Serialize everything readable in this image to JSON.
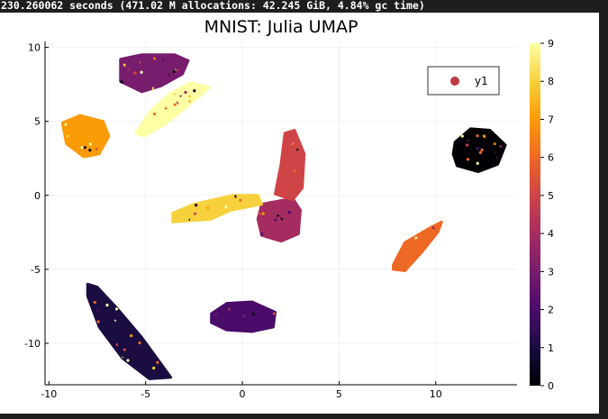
{
  "console": {
    "timing_text": "230.260062 seconds (471.02 M allocations: 42.245 GiB, 4.84% gc time)"
  },
  "chart_data": {
    "type": "scatter",
    "title": "MNIST: Julia UMAP",
    "xlabel": "",
    "ylabel": "",
    "xlim": [
      -10.2,
      14.2
    ],
    "ylim": [
      -12.8,
      10.4
    ],
    "xticks": [
      -10,
      -5,
      0,
      5,
      10
    ],
    "yticks": [
      -10,
      -5,
      0,
      5,
      10
    ],
    "grid": true,
    "legend": {
      "position": "top-right",
      "entries": [
        {
          "label": "y1",
          "color": "#c03a43"
        }
      ]
    },
    "colorbar": {
      "min": 0,
      "max": 9,
      "ticks": [
        0,
        1,
        2,
        3,
        4,
        5,
        6,
        7,
        8,
        9
      ],
      "colormap": "inferno"
    },
    "clusters": [
      {
        "label": 0,
        "center": [
          12.1,
          3.0
        ],
        "polygon": [
          [
            11.0,
            3.6
          ],
          [
            11.8,
            4.5
          ],
          [
            12.8,
            4.4
          ],
          [
            13.6,
            3.4
          ],
          [
            13.2,
            2.1
          ],
          [
            12.2,
            1.6
          ],
          [
            11.1,
            2.0
          ],
          [
            10.9,
            2.8
          ]
        ]
      },
      {
        "label": 1,
        "center": [
          -5.5,
          -9.0
        ],
        "polygon": [
          [
            -8.0,
            -6.0
          ],
          [
            -7.5,
            -6.2
          ],
          [
            -6.5,
            -7.6
          ],
          [
            -5.2,
            -9.6
          ],
          [
            -3.7,
            -12.3
          ],
          [
            -4.8,
            -12.4
          ],
          [
            -6.2,
            -11.0
          ],
          [
            -7.4,
            -8.9
          ],
          [
            -8.0,
            -6.8
          ]
        ]
      },
      {
        "label": 2,
        "center": [
          0.4,
          -8.2
        ],
        "polygon": [
          [
            -1.6,
            -8.0
          ],
          [
            -0.8,
            -7.3
          ],
          [
            0.5,
            -7.2
          ],
          [
            1.7,
            -7.9
          ],
          [
            1.6,
            -8.9
          ],
          [
            0.5,
            -9.2
          ],
          [
            -0.8,
            -9.1
          ],
          [
            -1.6,
            -8.6
          ]
        ]
      },
      {
        "label": 3,
        "center": [
          -4.6,
          8.5
        ],
        "polygon": [
          [
            -6.3,
            9.2
          ],
          [
            -5.2,
            9.5
          ],
          [
            -3.5,
            9.5
          ],
          [
            -2.8,
            9.1
          ],
          [
            -3.1,
            8.2
          ],
          [
            -4.2,
            7.4
          ],
          [
            -5.2,
            7.0
          ],
          [
            -6.3,
            7.7
          ]
        ]
      },
      {
        "label": 4,
        "center": [
          2.0,
          -1.6
        ],
        "polygon": [
          [
            1.0,
            -0.6
          ],
          [
            2.6,
            -0.2
          ],
          [
            3.0,
            -1.0
          ],
          [
            2.9,
            -2.6
          ],
          [
            2.0,
            -3.1
          ],
          [
            1.0,
            -2.7
          ],
          [
            0.8,
            -1.6
          ]
        ]
      },
      {
        "label": 5,
        "center": [
          2.5,
          1.8
        ],
        "polygon": [
          [
            1.7,
            0.1
          ],
          [
            2.0,
            2.1
          ],
          [
            2.2,
            4.2
          ],
          [
            2.7,
            4.4
          ],
          [
            3.2,
            2.8
          ],
          [
            3.1,
            0.5
          ],
          [
            2.6,
            -0.3
          ]
        ]
      },
      {
        "label": 6,
        "center": [
          9.3,
          -3.4
        ],
        "polygon": [
          [
            7.8,
            -4.7
          ],
          [
            8.4,
            -3.2
          ],
          [
            9.7,
            -2.2
          ],
          [
            10.3,
            -1.8
          ],
          [
            10.1,
            -2.5
          ],
          [
            9.3,
            -3.8
          ],
          [
            8.4,
            -5.1
          ],
          [
            7.8,
            -5.0
          ]
        ]
      },
      {
        "label": 7,
        "center": [
          -8.2,
          4.0
        ],
        "polygon": [
          [
            -9.3,
            4.9
          ],
          [
            -8.4,
            5.4
          ],
          [
            -7.2,
            5.0
          ],
          [
            -6.9,
            4.0
          ],
          [
            -7.4,
            2.8
          ],
          [
            -8.2,
            2.6
          ],
          [
            -9.1,
            3.5
          ]
        ]
      },
      {
        "label": 8,
        "center": [
          -1.2,
          -0.8
        ],
        "polygon": [
          [
            -3.6,
            -1.2
          ],
          [
            -2.5,
            -0.6
          ],
          [
            -0.5,
            0.0
          ],
          [
            0.8,
            0.0
          ],
          [
            1.0,
            -0.6
          ],
          [
            -0.6,
            -1.0
          ],
          [
            -1.6,
            -1.6
          ],
          [
            -3.6,
            -1.8
          ]
        ]
      },
      {
        "label": 9,
        "center": [
          -3.7,
          6.4
        ],
        "polygon": [
          [
            -5.5,
            4.2
          ],
          [
            -4.8,
            5.6
          ],
          [
            -3.8,
            6.8
          ],
          [
            -2.7,
            7.6
          ],
          [
            -1.7,
            7.3
          ],
          [
            -2.6,
            6.3
          ],
          [
            -4.0,
            4.8
          ],
          [
            -5.1,
            4.0
          ]
        ]
      }
    ]
  }
}
